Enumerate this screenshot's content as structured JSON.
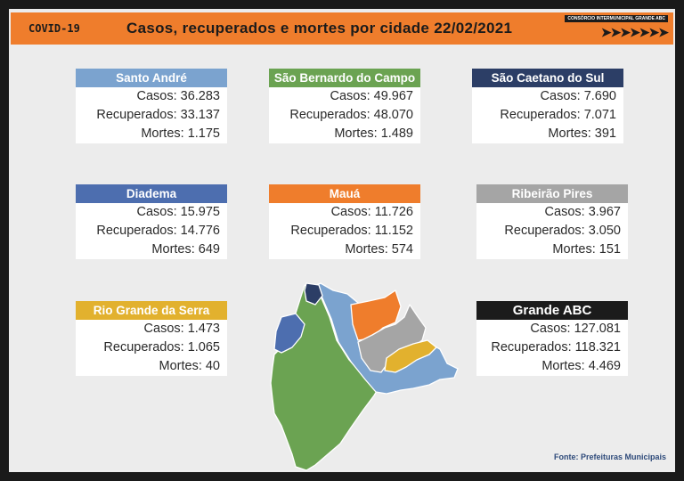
{
  "header": {
    "tag": "COVID-19",
    "title": "Casos, recuperados e mortes por cidade 22/02/2021",
    "logo_text": "CONSÓRCIO INTERMUNICIPAL GRANDE ABC",
    "logo_arrows": "➤➤➤➤➤➤➤"
  },
  "cities": [
    {
      "name": "Santo André",
      "casos": "Casos: 36.283",
      "recuperados": "Recuperados: 33.137",
      "mortes": "Mortes: 1.175",
      "color": "#7ba3cf"
    },
    {
      "name": "São Bernardo do Campo",
      "casos": "Casos: 49.967",
      "recuperados": "Recuperados: 48.070",
      "mortes": "Mortes: 1.489",
      "color": "#6ba352"
    },
    {
      "name": "São Caetano do Sul",
      "casos": "Casos: 7.690",
      "recuperados": "Recuperados: 7.071",
      "mortes": "Mortes: 391",
      "color": "#2c3e66"
    },
    {
      "name": "Diadema",
      "casos": "Casos: 15.975",
      "recuperados": "Recuperados: 14.776",
      "mortes": "Mortes: 649",
      "color": "#4d6eaf"
    },
    {
      "name": "Mauá",
      "casos": "Casos: 11.726",
      "recuperados": "Recuperados: 11.152",
      "mortes": "Mortes: 574",
      "color": "#ef7d2c"
    },
    {
      "name": "Ribeirão Pires",
      "casos": "Casos: 3.967",
      "recuperados": "Recuperados: 3.050",
      "mortes": "Mortes: 151",
      "color": "#a5a5a5"
    },
    {
      "name": "Rio Grande da Serra",
      "casos": "Casos: 1.473",
      "recuperados": "Recuperados: 1.065",
      "mortes": "Mortes: 40",
      "color": "#e2b12e"
    },
    {
      "name": "Grande ABC",
      "casos": "Casos: 127.081",
      "recuperados": "Recuperados: 118.321",
      "mortes": "Mortes: 4.469",
      "color": "#1b1b1b"
    }
  ],
  "footer": {
    "source": "Fonte: Prefeituras Municipais"
  }
}
